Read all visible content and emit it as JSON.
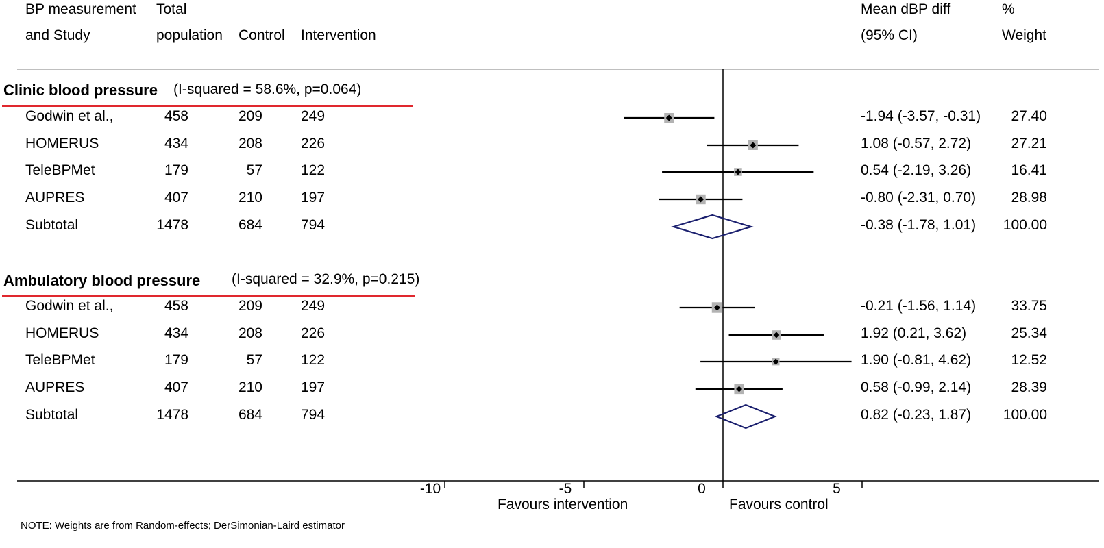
{
  "header": {
    "col1_line1": "BP measurement",
    "col1_line2": "and Study",
    "col2_line1": "Total",
    "col2_line2": "population",
    "col3": "Control",
    "col4": "Intervention",
    "est_line1": "Mean dBP diff",
    "est_line2": "(95% CI)",
    "wt_line1": "%",
    "wt_line2": "Weight"
  },
  "note": "NOTE: Weights are from Random-effects; DerSimonian-Laird estimator",
  "chart_data": {
    "type": "forest",
    "xlabel_left": "Favours intervention",
    "xlabel_right": "Favours control",
    "xticks": [
      -10,
      -5,
      0,
      5
    ],
    "reference_line": 0,
    "groups": [
      {
        "title": "Clinic blood pressure",
        "heterogeneity": "(I-squared = 58.6%, p=0.064)",
        "studies": [
          {
            "name": "Godwin et al.,",
            "total": "458",
            "control": "209",
            "intervention": "249",
            "estimate": -1.94,
            "ci_low": -3.57,
            "ci_high": -0.31,
            "ci_text": "-1.94 (-3.57, -0.31)",
            "weight": 27.4,
            "weight_text": "27.40"
          },
          {
            "name": "HOMERUS",
            "total": "434",
            "control": "208",
            "intervention": "226",
            "estimate": 1.08,
            "ci_low": -0.57,
            "ci_high": 2.72,
            "ci_text": "1.08 (-0.57, 2.72)",
            "weight": 27.21,
            "weight_text": "27.21"
          },
          {
            "name": "TeleBPMet",
            "total": "179",
            "control": "57",
            "intervention": "122",
            "estimate": 0.54,
            "ci_low": -2.19,
            "ci_high": 3.26,
            "ci_text": "0.54 (-2.19, 3.26)",
            "weight": 16.41,
            "weight_text": "16.41"
          },
          {
            "name": "AUPRES",
            "total": "407",
            "control": "210",
            "intervention": "197",
            "estimate": -0.8,
            "ci_low": -2.31,
            "ci_high": 0.7,
            "ci_text": "-0.80 (-2.31, 0.70)",
            "weight": 28.98,
            "weight_text": "28.98"
          }
        ],
        "subtotal": {
          "name": "Subtotal",
          "total": "1478",
          "control": "684",
          "intervention": "794",
          "estimate": -0.38,
          "ci_low": -1.78,
          "ci_high": 1.01,
          "ci_text": "-0.38 (-1.78, 1.01)",
          "weight_text": "100.00"
        }
      },
      {
        "title": "Ambulatory blood pressure",
        "heterogeneity": "(I-squared = 32.9%, p=0.215)",
        "studies": [
          {
            "name": "Godwin et al.,",
            "total": "458",
            "control": "209",
            "intervention": "249",
            "estimate": -0.21,
            "ci_low": -1.56,
            "ci_high": 1.14,
            "ci_text": "-0.21 (-1.56, 1.14)",
            "weight": 33.75,
            "weight_text": "33.75"
          },
          {
            "name": "HOMERUS",
            "total": "434",
            "control": "208",
            "intervention": "226",
            "estimate": 1.92,
            "ci_low": 0.21,
            "ci_high": 3.62,
            "ci_text": "1.92 (0.21, 3.62)",
            "weight": 25.34,
            "weight_text": "25.34"
          },
          {
            "name": "TeleBPMet",
            "total": "179",
            "control": "57",
            "intervention": "122",
            "estimate": 1.9,
            "ci_low": -0.81,
            "ci_high": 4.62,
            "ci_text": "1.90 (-0.81, 4.62)",
            "weight": 12.52,
            "weight_text": "12.52"
          },
          {
            "name": "AUPRES",
            "total": "407",
            "control": "210",
            "intervention": "197",
            "estimate": 0.58,
            "ci_low": -0.99,
            "ci_high": 2.14,
            "ci_text": "0.58 (-0.99, 2.14)",
            "weight": 28.39,
            "weight_text": "28.39"
          }
        ],
        "subtotal": {
          "name": "Subtotal",
          "total": "1478",
          "control": "684",
          "intervention": "794",
          "estimate": 0.82,
          "ci_low": -0.23,
          "ci_high": 1.87,
          "ci_text": "0.82 (-0.23, 1.87)",
          "weight_text": "100.00"
        }
      }
    ],
    "colors": {
      "box": "#b3b3b3",
      "diamond": "#1a1f6e",
      "group_underline": "#e0282e"
    }
  }
}
